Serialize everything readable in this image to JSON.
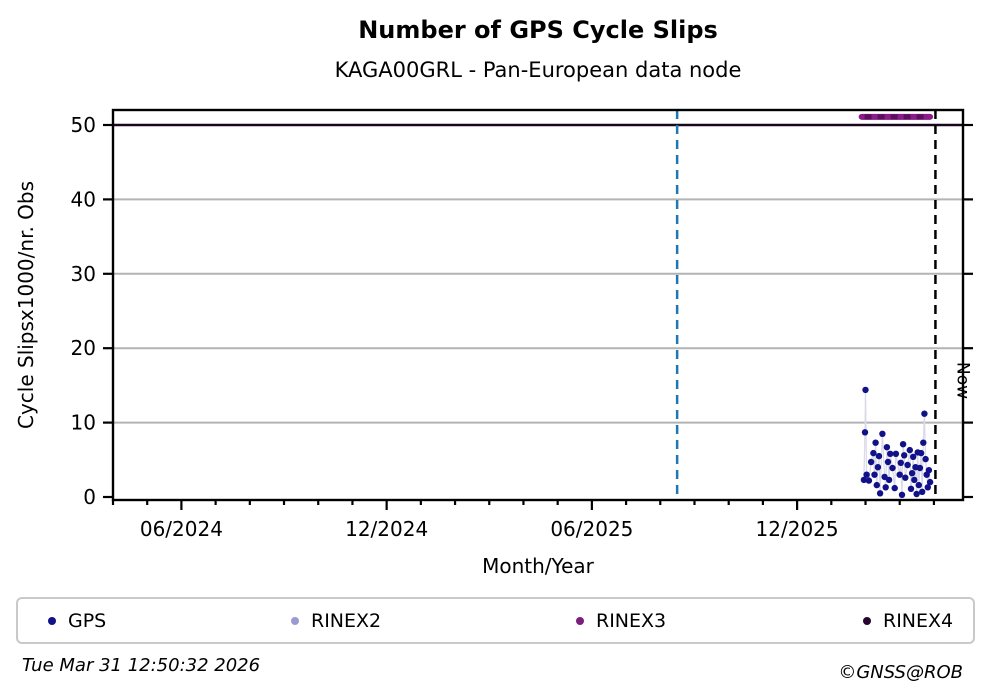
{
  "header": {
    "title": "Number of GPS Cycle Slips",
    "subtitle": "KAGA00GRL - Pan-European data node"
  },
  "footer": {
    "timestamp": "Tue Mar 31 12:50:32 2026",
    "copyright": "©GNSS@ROB"
  },
  "legend": {
    "items": [
      {
        "label": "GPS",
        "color": "#11118a"
      },
      {
        "label": "RINEX2",
        "color": "#9a9ad0"
      },
      {
        "label": "RINEX3",
        "color": "#7a1f7a"
      },
      {
        "label": "RINEX4",
        "color": "#26062e"
      }
    ]
  },
  "chart_data": {
    "type": "scatter",
    "title": "Number of GPS Cycle Slips",
    "subtitle": "KAGA00GRL - Pan-European data node",
    "xlabel": "Month/Year",
    "ylabel": "Cycle Slipsx1000/nr. Obs",
    "x_axis": {
      "tick_labels": [
        "06/2024",
        "12/2024",
        "06/2025",
        "12/2025"
      ],
      "minor_ticks": "monthly",
      "range": [
        "2024-04-01",
        "2026-04-26"
      ]
    },
    "y_axis": {
      "ticks": [
        0,
        10,
        20,
        30,
        40,
        50
      ],
      "ylim": [
        0,
        52
      ],
      "grid_color": "#b3b3b3"
    },
    "series": [
      {
        "name": "GPS",
        "color": "#11118a",
        "connector_color": "#d9d9e8",
        "style": "points-with-line",
        "points": [
          [
            "2026-01-30",
            2.3
          ],
          [
            "2026-01-31",
            8.7
          ],
          [
            "2026-02-01",
            14.4
          ],
          [
            "2026-02-02",
            3.0
          ],
          [
            "2026-02-04",
            2.2
          ],
          [
            "2026-02-06",
            4.7
          ],
          [
            "2026-02-08",
            5.9
          ],
          [
            "2026-02-09",
            3.0
          ],
          [
            "2026-02-10",
            7.3
          ],
          [
            "2026-02-11",
            1.6
          ],
          [
            "2026-02-12",
            4.0
          ],
          [
            "2026-02-13",
            5.5
          ],
          [
            "2026-02-14",
            0.5
          ],
          [
            "2026-02-16",
            8.5
          ],
          [
            "2026-02-18",
            2.7
          ],
          [
            "2026-02-19",
            1.3
          ],
          [
            "2026-02-20",
            6.7
          ],
          [
            "2026-02-21",
            4.7
          ],
          [
            "2026-02-22",
            2.3
          ],
          [
            "2026-02-23",
            5.8
          ],
          [
            "2026-02-25",
            3.9
          ],
          [
            "2026-02-27",
            1.2
          ],
          [
            "2026-02-28",
            5.8
          ],
          [
            "2026-03-01",
            3.0
          ],
          [
            "2026-03-02",
            4.6
          ],
          [
            "2026-03-03",
            0.3
          ],
          [
            "2026-03-04",
            7.1
          ],
          [
            "2026-03-05",
            5.6
          ],
          [
            "2026-03-06",
            2.6
          ],
          [
            "2026-03-08",
            4.3
          ],
          [
            "2026-03-10",
            6.3
          ],
          [
            "2026-03-11",
            1.1
          ],
          [
            "2026-03-12",
            3.2
          ],
          [
            "2026-03-13",
            5.4
          ],
          [
            "2026-03-14",
            2.3
          ],
          [
            "2026-03-15",
            4.0
          ],
          [
            "2026-03-16",
            0.4
          ],
          [
            "2026-03-17",
            6.0
          ],
          [
            "2026-03-18",
            1.6
          ],
          [
            "2026-03-19",
            3.9
          ],
          [
            "2026-03-20",
            5.9
          ],
          [
            "2026-03-21",
            0.7
          ],
          [
            "2026-03-22",
            7.3
          ],
          [
            "2026-03-23",
            11.2
          ],
          [
            "2026-03-24",
            5.1
          ],
          [
            "2026-03-25",
            3.0
          ],
          [
            "2026-03-26",
            1.3
          ],
          [
            "2026-03-27",
            3.6
          ],
          [
            "2026-03-28",
            2.0
          ]
        ]
      },
      {
        "name": "RINEX2",
        "color": "#9a9ad0",
        "style": "line",
        "points": []
      },
      {
        "name": "RINEX3",
        "color": "#8b1a8b",
        "dash_overlay_color": "#5a0f5a",
        "style": "thick-line",
        "points": [
          [
            "2026-01-28",
            51.1
          ],
          [
            "2026-03-28",
            51.1
          ]
        ]
      },
      {
        "name": "RINEX4",
        "color": "#1a0520",
        "style": "line",
        "points": [
          [
            "2024-04-01",
            50.0
          ],
          [
            "2026-04-26",
            50.0
          ]
        ]
      }
    ],
    "annotations": {
      "vline_blue_date": "2025-08-16",
      "vline_blue_color": "#1f77b4",
      "now_line_date": "2026-03-31",
      "now_line_color": "#000000",
      "now_label": "Now"
    },
    "grid": true,
    "legend_position": "bottom"
  }
}
